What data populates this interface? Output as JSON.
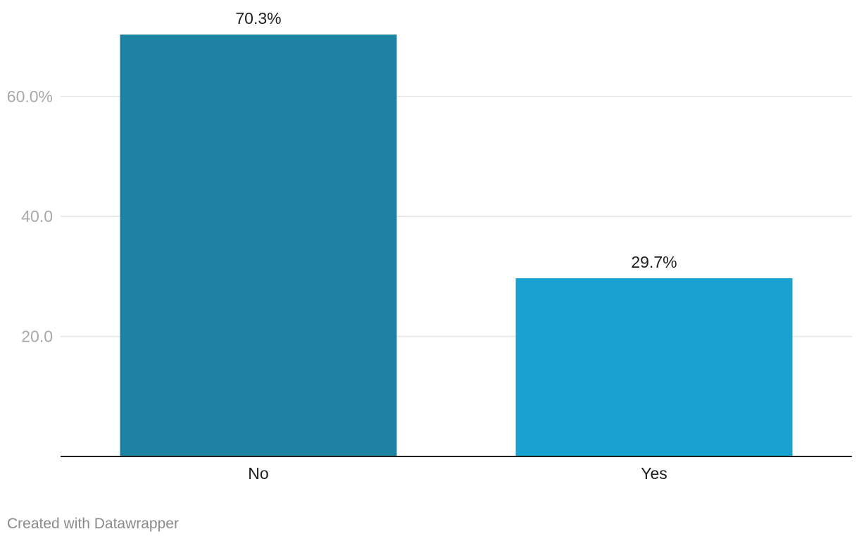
{
  "chart_data": {
    "type": "bar",
    "categories": [
      "No",
      "Yes"
    ],
    "values": [
      70.3,
      29.7
    ],
    "value_labels": [
      "70.3%",
      "29.7%"
    ],
    "colors": [
      "#1e83a2",
      "#19a2cf"
    ],
    "y_ticks": [
      20,
      40,
      60
    ],
    "y_tick_labels": [
      "20.0",
      "40.0",
      "60.0%"
    ],
    "ylim": [
      0,
      75
    ],
    "grid": true,
    "baseline_color": "#1d1d1d",
    "gridline_color": "#e3e3e3"
  },
  "footer": {
    "credit": "Created with Datawrapper"
  }
}
